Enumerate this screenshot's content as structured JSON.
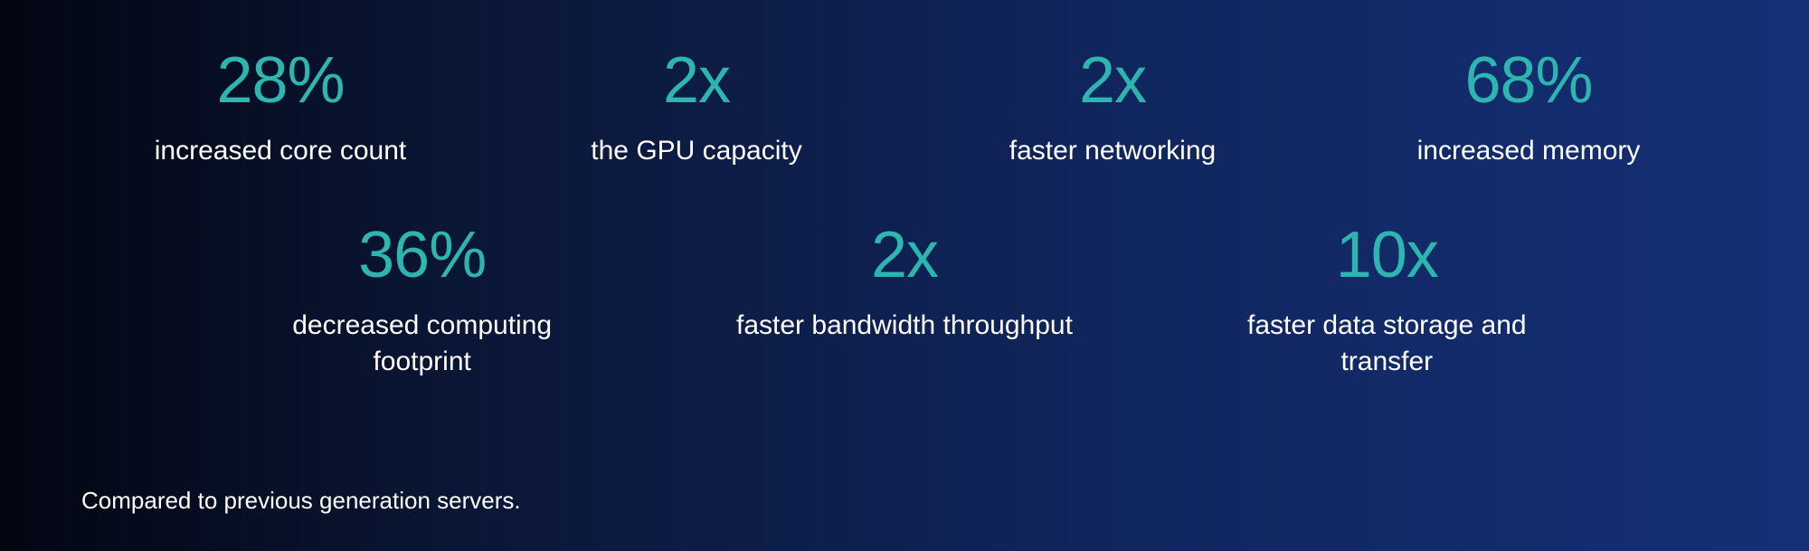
{
  "stats_row1": [
    {
      "value": "28%",
      "label": "increased core count"
    },
    {
      "value": "2x",
      "label": "the GPU capacity"
    },
    {
      "value": "2x",
      "label": "faster networking"
    },
    {
      "value": "68%",
      "label": "increased memory"
    }
  ],
  "stats_row2": [
    {
      "value": "36%",
      "label": "decreased computing footprint"
    },
    {
      "value": "2x",
      "label": "faster bandwidth throughput"
    },
    {
      "value": "10x",
      "label": "faster data storage and transfer"
    }
  ],
  "footnote": "Compared to previous generation servers.",
  "colors": {
    "value_color": "#2db5b0",
    "label_color": "#ffffff",
    "background_gradient_start": "#030612",
    "background_gradient_end": "#153077"
  },
  "typography": {
    "value_fontsize": 72,
    "value_fontweight": 300,
    "label_fontsize": 30,
    "label_fontweight": 400,
    "footnote_fontsize": 26
  }
}
